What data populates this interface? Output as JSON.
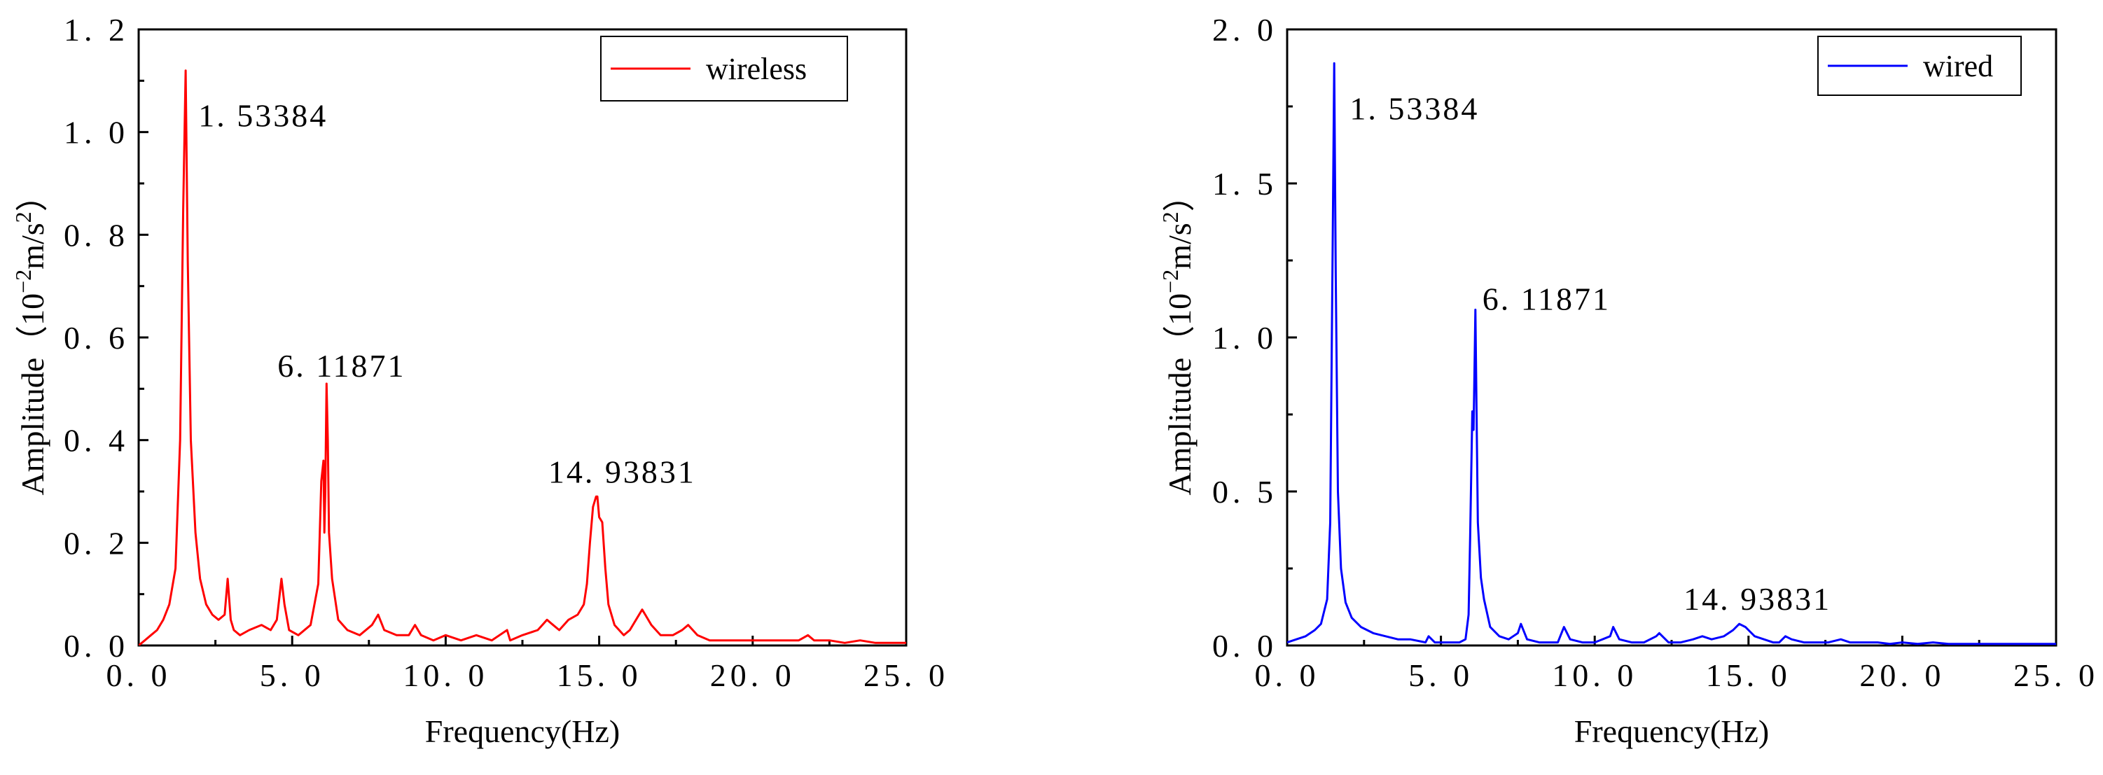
{
  "chart_data": [
    {
      "type": "line",
      "title": "",
      "xlabel": "Frequency(Hz)",
      "ylabel": "Amplitude(10⁻²m/s²)",
      "ylabel_parts": {
        "prefix": "Amplitude（10",
        "exp1": "−2",
        "mid": "m/s",
        "exp2": "2",
        "suffix": "）"
      },
      "xlim": [
        0,
        25
      ],
      "ylim": [
        0,
        1.2
      ],
      "xticks": [
        0,
        5,
        10,
        15,
        20,
        25
      ],
      "xtick_labels": [
        "0. 0",
        "5. 0",
        "10. 0",
        "15. 0",
        "20. 0",
        "25. 0"
      ],
      "yticks": [
        0,
        0.2,
        0.4,
        0.6,
        0.8,
        1.0,
        1.2
      ],
      "ytick_labels": [
        "0. 0",
        "0. 2",
        "0. 4",
        "0. 6",
        "0. 8",
        "1. 0",
        "1. 2"
      ],
      "grid": false,
      "legend_position": "top-right",
      "color": "#ff0000",
      "series": [
        {
          "name": "wireless",
          "x": [
            0,
            0.2,
            0.4,
            0.6,
            0.8,
            1.0,
            1.2,
            1.35,
            1.45,
            1.53,
            1.6,
            1.7,
            1.85,
            2.0,
            2.2,
            2.4,
            2.6,
            2.8,
            2.9,
            3.0,
            3.1,
            3.3,
            3.6,
            4.0,
            4.3,
            4.5,
            4.65,
            4.75,
            4.9,
            5.2,
            5.6,
            5.85,
            5.95,
            6.02,
            6.05,
            6.08,
            6.12,
            6.16,
            6.2,
            6.3,
            6.5,
            6.8,
            7.2,
            7.6,
            7.8,
            8.0,
            8.4,
            8.8,
            9.0,
            9.2,
            9.6,
            10.0,
            10.5,
            11.0,
            11.5,
            12.0,
            12.1,
            12.5,
            13.0,
            13.3,
            13.5,
            13.7,
            14.0,
            14.3,
            14.5,
            14.6,
            14.7,
            14.8,
            14.9,
            14.94,
            15.0,
            15.1,
            15.2,
            15.3,
            15.5,
            15.8,
            16.0,
            16.2,
            16.4,
            16.5,
            16.7,
            17.0,
            17.4,
            17.7,
            17.9,
            18.2,
            18.6,
            19.0,
            19.5,
            20.0,
            20.5,
            21.0,
            21.5,
            21.8,
            22.0,
            22.5,
            23.0,
            23.5,
            24.0,
            24.5,
            25.0
          ],
          "y": [
            0.0,
            0.01,
            0.02,
            0.03,
            0.05,
            0.08,
            0.15,
            0.4,
            0.85,
            1.12,
            0.75,
            0.4,
            0.22,
            0.13,
            0.08,
            0.06,
            0.05,
            0.06,
            0.13,
            0.05,
            0.03,
            0.02,
            0.03,
            0.04,
            0.03,
            0.05,
            0.13,
            0.08,
            0.03,
            0.02,
            0.04,
            0.12,
            0.32,
            0.36,
            0.22,
            0.3,
            0.51,
            0.4,
            0.22,
            0.13,
            0.05,
            0.03,
            0.02,
            0.04,
            0.06,
            0.03,
            0.02,
            0.02,
            0.04,
            0.02,
            0.01,
            0.02,
            0.01,
            0.02,
            0.01,
            0.03,
            0.01,
            0.02,
            0.03,
            0.05,
            0.04,
            0.03,
            0.05,
            0.06,
            0.08,
            0.12,
            0.2,
            0.27,
            0.29,
            0.29,
            0.25,
            0.24,
            0.15,
            0.08,
            0.04,
            0.02,
            0.03,
            0.05,
            0.07,
            0.06,
            0.04,
            0.02,
            0.02,
            0.03,
            0.04,
            0.02,
            0.01,
            0.01,
            0.01,
            0.01,
            0.01,
            0.01,
            0.01,
            0.02,
            0.01,
            0.01,
            0.005,
            0.01,
            0.005,
            0.005,
            0.005
          ]
        }
      ],
      "annotations": [
        {
          "text": "1. 53384",
          "x": 1.53384,
          "y": 1.12
        },
        {
          "text": "6. 11871",
          "x": 6.11871,
          "y": 0.51
        },
        {
          "text": "14. 93831",
          "x": 14.93831,
          "y": 0.29
        }
      ]
    },
    {
      "type": "line",
      "title": "",
      "xlabel": "Frequency(Hz)",
      "ylabel": "Amplitude(10⁻²m/s²)",
      "ylabel_parts": {
        "prefix": "Amplitude（10",
        "exp1": "−2",
        "mid": "m/s",
        "exp2": "2",
        "suffix": "）"
      },
      "xlim": [
        0,
        25
      ],
      "ylim": [
        0,
        2.0
      ],
      "xticks": [
        0,
        5,
        10,
        15,
        20,
        25
      ],
      "xtick_labels": [
        "0. 0",
        "5. 0",
        "10. 0",
        "15. 0",
        "20. 0",
        "25. 0"
      ],
      "yticks": [
        0,
        0.5,
        1.0,
        1.5,
        2.0
      ],
      "ytick_labels": [
        "0. 0",
        "0. 5",
        "1. 0",
        "1. 5",
        "2. 0"
      ],
      "grid": false,
      "legend_position": "top-right",
      "color": "#0000ff",
      "series": [
        {
          "name": "wired",
          "x": [
            0,
            0.3,
            0.6,
            0.9,
            1.1,
            1.3,
            1.4,
            1.48,
            1.53,
            1.58,
            1.65,
            1.75,
            1.9,
            2.1,
            2.4,
            2.8,
            3.2,
            3.6,
            4.0,
            4.5,
            4.6,
            4.8,
            5.2,
            5.6,
            5.8,
            5.9,
            5.95,
            6.02,
            6.06,
            6.1,
            6.12,
            6.16,
            6.2,
            6.3,
            6.4,
            6.6,
            6.9,
            7.2,
            7.5,
            7.6,
            7.8,
            8.2,
            8.8,
            9.0,
            9.2,
            9.6,
            10.0,
            10.5,
            10.6,
            10.8,
            11.2,
            11.6,
            12.0,
            12.1,
            12.4,
            12.8,
            13.2,
            13.5,
            13.8,
            14.2,
            14.5,
            14.7,
            14.9,
            15.0,
            15.2,
            15.5,
            15.8,
            16.0,
            16.2,
            16.4,
            16.8,
            17.2,
            17.6,
            18.0,
            18.3,
            18.8,
            19.2,
            19.6,
            20.0,
            20.5,
            21.0,
            21.5,
            22.0,
            22.5,
            23.0,
            23.5,
            24.0,
            24.5,
            25.0
          ],
          "y": [
            0.01,
            0.02,
            0.03,
            0.05,
            0.07,
            0.15,
            0.4,
            1.3,
            1.89,
            1.2,
            0.5,
            0.25,
            0.14,
            0.09,
            0.06,
            0.04,
            0.03,
            0.02,
            0.02,
            0.01,
            0.03,
            0.01,
            0.01,
            0.01,
            0.02,
            0.1,
            0.35,
            0.76,
            0.7,
            0.95,
            1.09,
            0.75,
            0.4,
            0.22,
            0.15,
            0.06,
            0.03,
            0.02,
            0.04,
            0.07,
            0.02,
            0.01,
            0.01,
            0.06,
            0.02,
            0.01,
            0.01,
            0.03,
            0.06,
            0.02,
            0.01,
            0.01,
            0.03,
            0.04,
            0.01,
            0.01,
            0.02,
            0.03,
            0.02,
            0.03,
            0.05,
            0.07,
            0.06,
            0.05,
            0.03,
            0.02,
            0.01,
            0.01,
            0.03,
            0.02,
            0.01,
            0.01,
            0.01,
            0.02,
            0.01,
            0.01,
            0.01,
            0.005,
            0.01,
            0.005,
            0.01,
            0.005,
            0.005,
            0.005,
            0.005,
            0.005,
            0.005,
            0.005,
            0.005
          ]
        }
      ],
      "annotations": [
        {
          "text": "1. 53384",
          "x": 1.53384,
          "y": 1.89
        },
        {
          "text": "6. 11871",
          "x": 6.11871,
          "y": 1.09
        },
        {
          "text": "14. 93831",
          "x": 14.93831,
          "y": 0.07
        }
      ]
    }
  ]
}
